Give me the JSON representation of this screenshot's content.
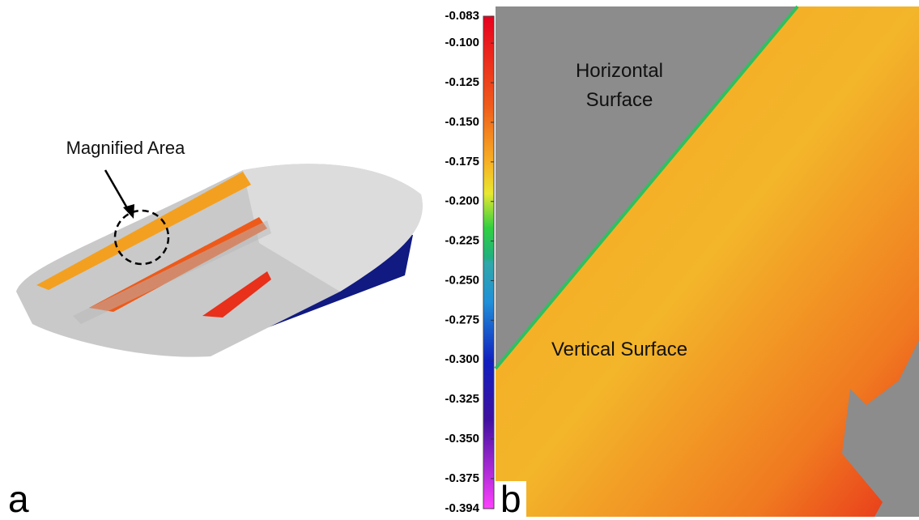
{
  "panel_a": {
    "label": "a",
    "annotation": "Magnified Area"
  },
  "panel_b": {
    "label": "b",
    "horizontal_label": "Horizontal Surface",
    "vertical_label": "Vertical Surface"
  },
  "colorbar": {
    "lim": [
      -0.083,
      -0.394
    ],
    "ticks": [
      -0.083,
      {
        "value": -0.1,
        "label": "-0.100"
      },
      -0.125,
      {
        "value": -0.15,
        "label": "-0.150"
      },
      -0.175,
      {
        "value": -0.2,
        "label": "-0.200"
      },
      -0.225,
      {
        "value": -0.25,
        "label": "-0.250"
      },
      -0.275,
      {
        "value": -0.3,
        "label": "-0.300"
      },
      -0.325,
      {
        "value": -0.35,
        "label": "-0.350"
      },
      -0.375,
      -0.394
    ]
  }
}
